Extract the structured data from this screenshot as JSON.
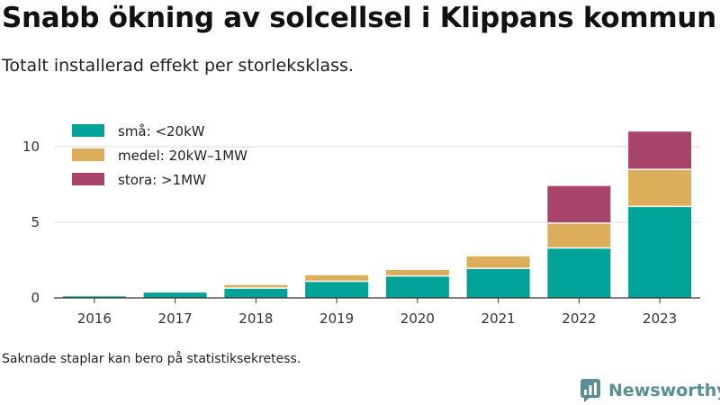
{
  "title": "Snabb ökning av solcellsel i Klippans kommun",
  "subtitle": "Totalt installerad effekt per storleksklass.",
  "footnote": "Saknade staplar kan bero på statistiksekretess.",
  "brand": {
    "name": "Newsworthy",
    "icon": "newsworthy-logo-icon",
    "color": "#5a8f91"
  },
  "chart_data": {
    "type": "bar",
    "stacked": true,
    "categories": [
      "2016",
      "2017",
      "2018",
      "2019",
      "2020",
      "2021",
      "2022",
      "2023"
    ],
    "series": [
      {
        "name": "små: <20kW",
        "color": "#00a398",
        "values": [
          0.1,
          0.35,
          0.65,
          1.1,
          1.45,
          1.95,
          3.3,
          6.05
        ]
      },
      {
        "name": "medel: 20kW–1MW",
        "color": "#dcae59",
        "values": [
          0.0,
          0.0,
          0.2,
          0.4,
          0.4,
          0.8,
          1.65,
          2.45
        ]
      },
      {
        "name": "stora: >1MW",
        "color": "#a8446a",
        "values": [
          0.0,
          0.0,
          0.0,
          0.0,
          0.0,
          0.0,
          2.45,
          2.5
        ]
      }
    ],
    "y_ticks": [
      0,
      5,
      10
    ],
    "ylim": [
      0,
      11.5
    ],
    "grid": true,
    "legend_position": "top-left",
    "xlabel": "",
    "ylabel": ""
  }
}
